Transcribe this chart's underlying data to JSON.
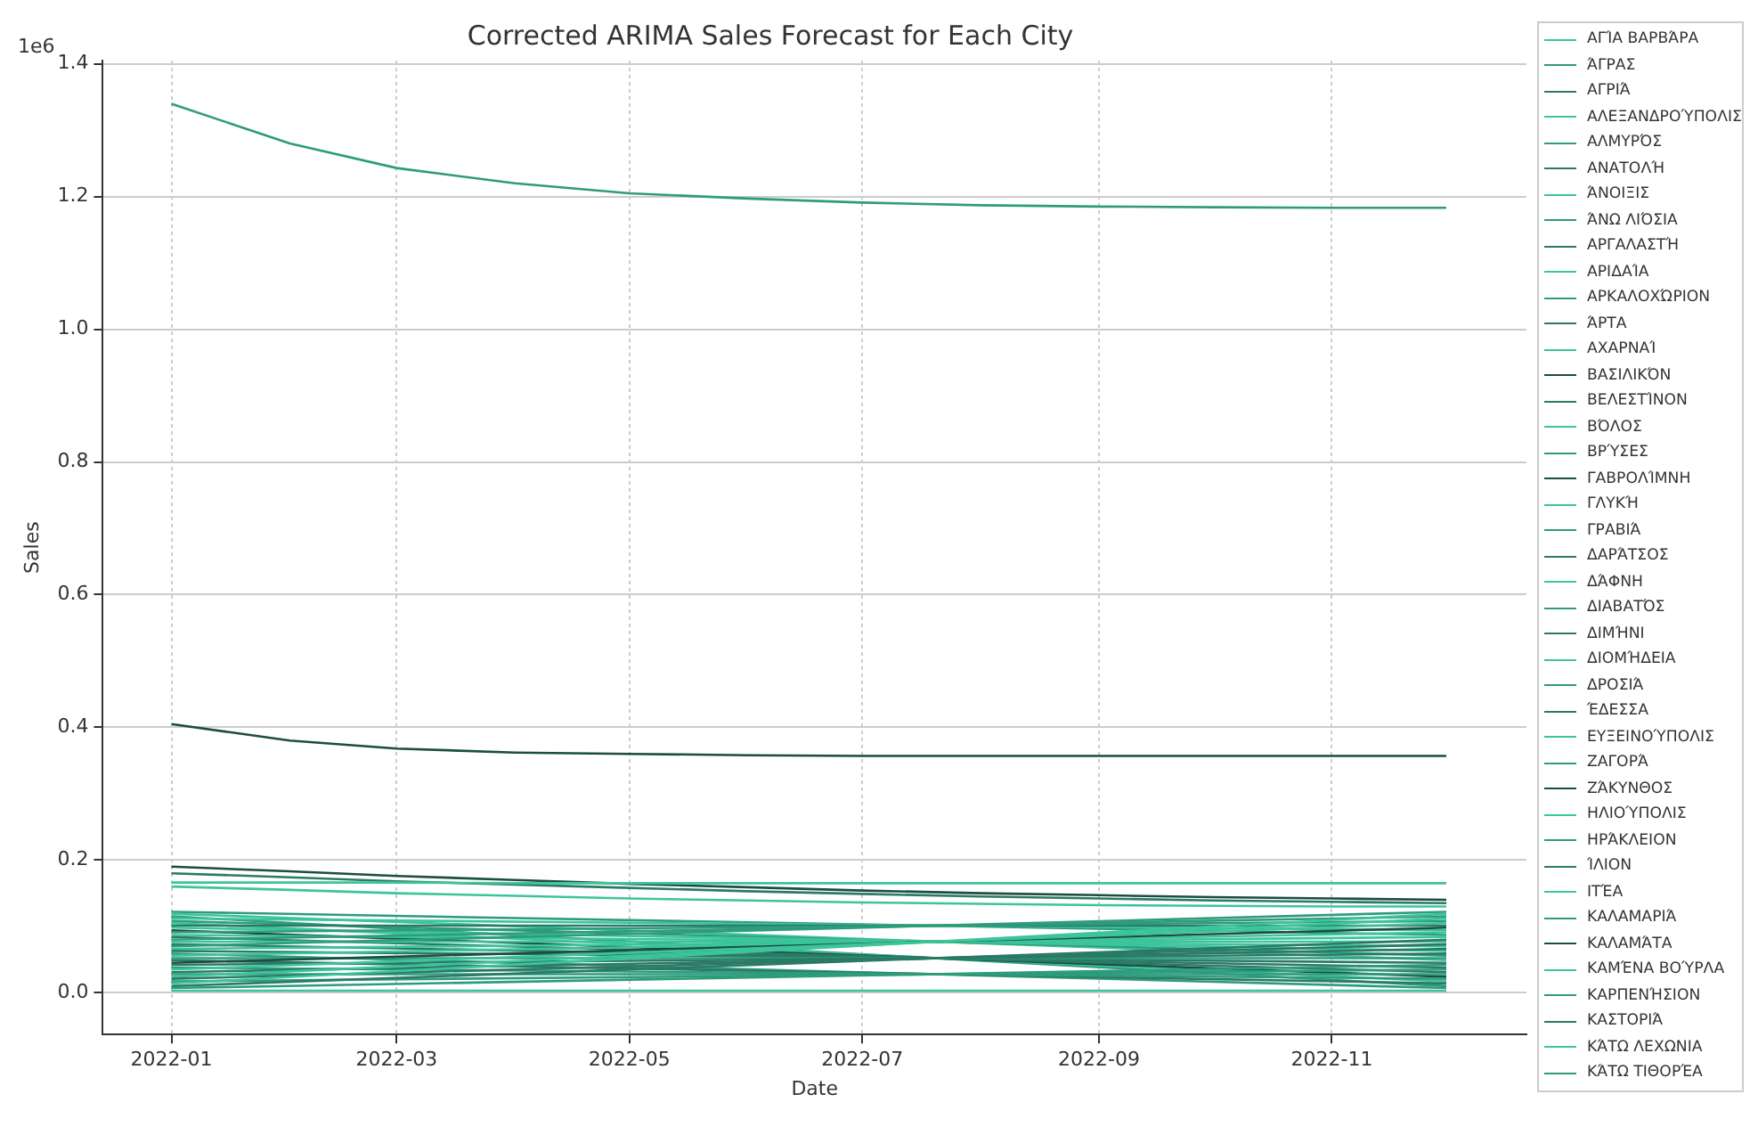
{
  "chart_data": {
    "type": "line",
    "title": "Corrected ARIMA Sales Forecast for Each City",
    "xlabel": "Date",
    "ylabel": "Sales",
    "annotations": [
      "1e6"
    ],
    "x": [
      "2022-01",
      "2022-02",
      "2022-03",
      "2022-04",
      "2022-05",
      "2022-06",
      "2022-07",
      "2022-08",
      "2022-09",
      "2022-10",
      "2022-11",
      "2022-12"
    ],
    "xlim": [
      "2021-12-14",
      "2022-12-22"
    ],
    "xticks": [
      "2022-01",
      "2022-03",
      "2022-05",
      "2022-07",
      "2022-09",
      "2022-11"
    ],
    "ylim": [
      -0.063,
      1.405
    ],
    "yticks": [
      {
        "value": 0,
        "label": "0.0"
      },
      0.2,
      0.4,
      0.6,
      0.8,
      {
        "value": 1,
        "label": "1.0"
      },
      1.2,
      1.4
    ],
    "grid": true,
    "legend": "right",
    "marker": "none",
    "line_style": "solid",
    "series": [
      {
        "name": "ΑΓΊΑ ΒΑΡΒΆΡΑ",
        "color": "#3cc49b",
        "x": [
          "2022-01",
          "2022-12"
        ],
        "values": [
          0.003,
          0.003
        ]
      },
      {
        "name": "ΆΓΡΑΣ",
        "color": "#2e9c7c",
        "x": [
          "2022-01",
          "2022-12"
        ],
        "values": [
          0.007,
          0.042
        ]
      },
      {
        "name": "ΑΓΡΙΆ",
        "color": "#2b7a66",
        "x": [
          "2022-01",
          "2022-12"
        ],
        "values": [
          0.01,
          0.08
        ]
      },
      {
        "name": "ΑΛΕΞΑΝΔΡΟΎΠΟΛΙΣ",
        "color": "#3cc49b",
        "x": [
          "2022-01",
          "2022-12"
        ],
        "values": [
          0.014,
          0.119
        ]
      },
      {
        "name": "ΑΛΜΥΡΌΣ",
        "color": "#2e9c7c",
        "x": [
          "2022-01",
          "2022-12"
        ],
        "values": [
          0.017,
          0.035
        ]
      },
      {
        "name": "ΑΝΑΤΟΛΉ",
        "color": "#2b7a66",
        "x": [
          "2022-01",
          "2022-12"
        ],
        "values": [
          0.021,
          0.073
        ]
      },
      {
        "name": "ΆΝΟΙΞΙΣ",
        "color": "#3cc49b",
        "x": [
          "2022-01",
          "2022-12"
        ],
        "values": [
          0.024,
          0.112
        ]
      },
      {
        "name": "ΆΝΩ ΛΙΌΣΙΑ",
        "color": "#2e9c7c",
        "x": [
          "2022-01",
          "2022-12"
        ],
        "values": [
          0.028,
          0.028
        ]
      },
      {
        "name": "ΑΡΓΑΛΑΣΤΉ",
        "color": "#2b7a66",
        "x": [
          "2022-01",
          "2022-12"
        ],
        "values": [
          0.031,
          0.066
        ]
      },
      {
        "name": "ΑΡΙΔΑΊΑ",
        "color": "#3cc49b",
        "x": [
          "2022-01",
          "2022-12"
        ],
        "values": [
          0.035,
          0.105
        ]
      },
      {
        "name": "ΑΡΚΑΛΟΧΏΡΙΟΝ",
        "color": "#2e9c7c",
        "x": [
          "2022-01",
          "2022-12"
        ],
        "values": [
          0.038,
          0.021
        ]
      },
      {
        "name": "ΆΡΤΑ",
        "color": "#2b7a66",
        "x": [
          "2022-01",
          "2022-12"
        ],
        "values": [
          0.042,
          0.059
        ]
      },
      {
        "name": "ΑΧΑΡΝΑΊ",
        "color": "#3cc49b",
        "values": [
          0.16,
          0.155,
          0.15,
          0.146,
          0.142,
          0.139,
          0.136,
          0.134,
          0.132,
          0.131,
          0.13,
          0.13
        ]
      },
      {
        "name": "ΒΑΣΙΛΙΚΌΝ",
        "color": "#1b4d40",
        "x": [
          "2022-01",
          "2022-12"
        ],
        "values": [
          0.045,
          0.098
        ]
      },
      {
        "name": "ΒΕΛΕΣΤΊΝΟΝ",
        "color": "#2b7a66",
        "x": [
          "2022-01",
          "2022-12"
        ],
        "values": [
          0.049,
          0.014
        ]
      },
      {
        "name": "ΒΌΛΟΣ",
        "color": "#3cc49b",
        "values": [
          0.166,
          0.166,
          0.166,
          0.165,
          0.165,
          0.165,
          0.165,
          0.165,
          0.165,
          0.165,
          0.165,
          0.165
        ]
      },
      {
        "name": "ΒΡΎΣΕΣ",
        "color": "#2e9c7c",
        "x": [
          "2022-01",
          "2022-12"
        ],
        "values": [
          0.052,
          0.052
        ]
      },
      {
        "name": "ΓΑΒΡΟΛΊΜΝΗ",
        "color": "#1b4d40",
        "values": [
          0.405,
          0.38,
          0.368,
          0.362,
          0.36,
          0.358,
          0.357,
          0.357,
          0.357,
          0.357,
          0.357,
          0.357
        ]
      },
      {
        "name": "ΓΛΥΚΉ",
        "color": "#3cc49b",
        "x": [
          "2022-01",
          "2022-12"
        ],
        "values": [
          0.056,
          0.091
        ]
      },
      {
        "name": "ΓΡΑΒΙΆ",
        "color": "#2e9c7c",
        "x": [
          "2022-01",
          "2022-12"
        ],
        "values": [
          0.059,
          0.007
        ]
      },
      {
        "name": "ΔΑΡΆΤΣΟΣ",
        "color": "#2b7a66",
        "x": [
          "2022-01",
          "2022-12"
        ],
        "values": [
          0.063,
          0.045
        ]
      },
      {
        "name": "ΔΆΦΝΗ",
        "color": "#3cc49b",
        "x": [
          "2022-01",
          "2022-12"
        ],
        "values": [
          0.066,
          0.084
        ]
      },
      {
        "name": "ΔΙΑΒΑΤΌΣ",
        "color": "#2e9c7c",
        "x": [
          "2022-01",
          "2022-12"
        ],
        "values": [
          0.07,
          0.122
        ]
      },
      {
        "name": "ΔΙΜΉΝΙ",
        "color": "#2b7a66",
        "x": [
          "2022-01",
          "2022-12"
        ],
        "values": [
          0.073,
          0.038
        ]
      },
      {
        "name": "ΔΙΟΜΉΔΕΙΑ",
        "color": "#3cc49b",
        "x": [
          "2022-01",
          "2022-12"
        ],
        "values": [
          0.077,
          0.077
        ]
      },
      {
        "name": "ΔΡΟΣΙΆ",
        "color": "#2e9c7c",
        "x": [
          "2022-01",
          "2022-12"
        ],
        "values": [
          0.08,
          0.115
        ]
      },
      {
        "name": "ΈΔΕΣΣΑ",
        "color": "#2b7a66",
        "x": [
          "2022-01",
          "2022-12"
        ],
        "values": [
          0.084,
          0.031
        ]
      },
      {
        "name": "ΕΥΞΕΙΝΟΎΠΟΛΙΣ",
        "color": "#3cc49b",
        "x": [
          "2022-01",
          "2022-12"
        ],
        "values": [
          0.087,
          0.07
        ]
      },
      {
        "name": "ΖΑΓΟΡΆ",
        "color": "#2e9c7c",
        "x": [
          "2022-01",
          "2022-12"
        ],
        "values": [
          0.091,
          0.108
        ]
      },
      {
        "name": "ΖΆΚΥΝΘΟΣ",
        "color": "#1b4d40",
        "x": [
          "2022-01",
          "2022-12"
        ],
        "values": [
          0.094,
          0.024
        ]
      },
      {
        "name": "ΗΛΙΟΎΠΟΛΙΣ",
        "color": "#3cc49b",
        "x": [
          "2022-01",
          "2022-12"
        ],
        "values": [
          0.098,
          0.063
        ]
      },
      {
        "name": "ΗΡΆΚΛΕΙΟΝ",
        "color": "#2e9c7c",
        "values": [
          1.34,
          1.28,
          1.243,
          1.22,
          1.205,
          1.197,
          1.191,
          1.187,
          1.185,
          1.184,
          1.183,
          1.183
        ]
      },
      {
        "name": "ΊΛΙΟΝ",
        "color": "#2b7a66",
        "x": [
          "2022-01",
          "2022-12"
        ],
        "values": [
          0.101,
          0.101
        ]
      },
      {
        "name": "ΙΤΈΑ",
        "color": "#3cc49b",
        "x": [
          "2022-01",
          "2022-12"
        ],
        "values": [
          0.105,
          0.017
        ]
      },
      {
        "name": "ΚΑΛΑΜΑΡΙΆ",
        "color": "#2e9c7c",
        "x": [
          "2022-01",
          "2022-12"
        ],
        "values": [
          0.108,
          0.056
        ]
      },
      {
        "name": "ΚΑΛΑΜΆΤΑ",
        "color": "#1b4d40",
        "values": [
          0.19,
          0.183,
          0.176,
          0.17,
          0.164,
          0.159,
          0.154,
          0.15,
          0.147,
          0.144,
          0.142,
          0.14
        ]
      },
      {
        "name": "ΚΑΜΈΝΑ ΒΟΎΡΛΑ",
        "color": "#3cc49b",
        "x": [
          "2022-01",
          "2022-12"
        ],
        "values": [
          0.112,
          0.094
        ]
      },
      {
        "name": "ΚΑΡΠΕΝΉΣΙΟΝ",
        "color": "#2e9c7c",
        "x": [
          "2022-01",
          "2022-12"
        ],
        "values": [
          0.115,
          0.01
        ]
      },
      {
        "name": "ΚΑΣΤΟΡΙΆ",
        "color": "#2b7a66",
        "values": [
          0.18,
          0.174,
          0.168,
          0.163,
          0.158,
          0.153,
          0.149,
          0.145,
          0.142,
          0.139,
          0.137,
          0.135
        ]
      },
      {
        "name": "ΚΆΤΩ ΛΕΧΩΝΙΑ",
        "color": "#3cc49b",
        "x": [
          "2022-01",
          "2022-12"
        ],
        "values": [
          0.119,
          0.049
        ]
      },
      {
        "name": "ΚΆΤΩ ΤΙΘΟΡΈΑ",
        "color": "#2e9c7c",
        "x": [
          "2022-01",
          "2022-12"
        ],
        "values": [
          0.122,
          0.087
        ]
      }
    ]
  }
}
